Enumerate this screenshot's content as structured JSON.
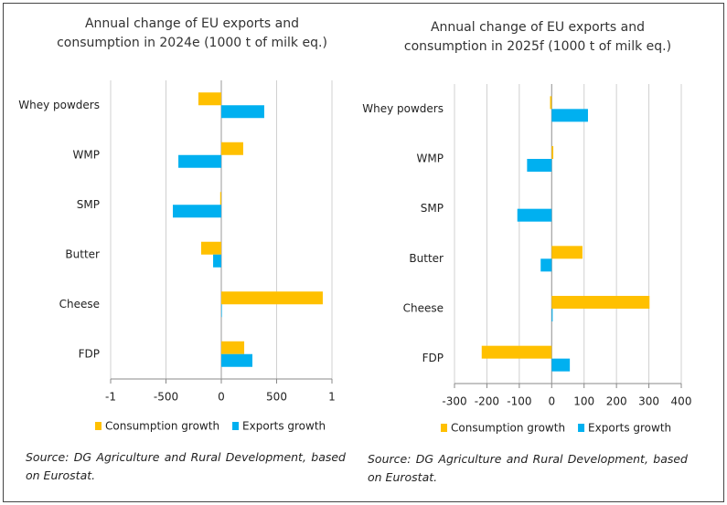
{
  "chart_data": [
    {
      "type": "bar",
      "orientation": "horizontal",
      "title": [
        "Annual change of EU exports and",
        "consumption in 2024e (1000 t of milk eq.)"
      ],
      "categories": [
        "Whey powders",
        "WMP",
        "SMP",
        "Butter",
        "Cheese",
        "FDP"
      ],
      "series": [
        {
          "name": "Consumption growth",
          "color": "#ffc000",
          "values": [
            -207,
            198,
            -10,
            -182,
            917,
            207
          ]
        },
        {
          "name": "Exports growth",
          "color": "#00b0f0",
          "values": [
            388,
            -388,
            -438,
            -74,
            5,
            281
          ]
        }
      ],
      "xlim": [
        -1000,
        1000
      ],
      "xticks": [
        {
          "value": -1000,
          "label": "-1"
        },
        -500,
        0,
        500,
        {
          "value": 1000,
          "label": "1"
        }
      ],
      "grid": true,
      "legend": "bottom",
      "source": "Source: DG Agriculture and Rural Development, based on Eurostat."
    },
    {
      "type": "bar",
      "orientation": "horizontal",
      "title": [
        "Annual change of EU exports and",
        "consumption in 2025f (1000 t of milk eq.)"
      ],
      "categories": [
        "Whey powders",
        "WMP",
        "SMP",
        "Butter",
        "Cheese",
        "FDP"
      ],
      "series": [
        {
          "name": "Consumption growth",
          "color": "#ffc000",
          "values": [
            -5,
            5,
            0,
            95,
            302,
            -216
          ]
        },
        {
          "name": "Exports growth",
          "color": "#00b0f0",
          "values": [
            112,
            -76,
            -106,
            -34,
            3,
            56
          ]
        }
      ],
      "xlim": [
        -300,
        400
      ],
      "xticks": [
        -300,
        -200,
        -100,
        0,
        100,
        200,
        300,
        400
      ],
      "grid": true,
      "legend": "bottom",
      "source": "Source: DG Agriculture and Rural Development, based on Eurostat."
    }
  ]
}
